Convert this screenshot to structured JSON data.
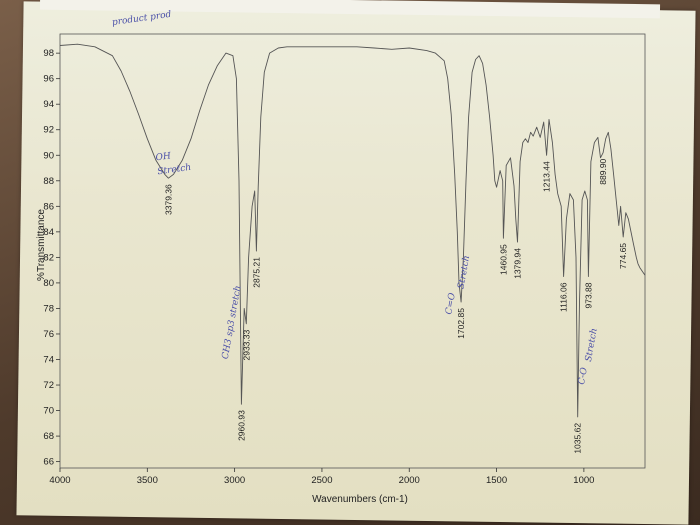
{
  "chart_data": {
    "type": "line",
    "xlabel": "Wavenumbers (cm-1)",
    "ylabel": "%Transmittance",
    "xlim": [
      4000,
      650
    ],
    "ylim": [
      65.5,
      99.5
    ],
    "x_ticks": [
      "4000",
      "3500",
      "3000",
      "2500",
      "2000",
      "1500",
      "1000"
    ],
    "x_tick_values": [
      4000,
      3500,
      3000,
      2500,
      2000,
      1500,
      1000
    ],
    "y_ticks": [
      "66",
      "68",
      "70",
      "72",
      "74",
      "76",
      "78",
      "80",
      "82",
      "84",
      "86",
      "88",
      "90",
      "92",
      "94",
      "96",
      "98"
    ],
    "y_tick_values": [
      66,
      68,
      70,
      72,
      74,
      76,
      78,
      80,
      82,
      84,
      86,
      88,
      90,
      92,
      94,
      96,
      98
    ],
    "series": [
      {
        "x": [
          4000,
          3900,
          3800,
          3700,
          3650,
          3600,
          3550,
          3500,
          3450,
          3400,
          3379.36,
          3350,
          3300,
          3250,
          3200,
          3150,
          3100,
          3050,
          3010,
          2990,
          2975,
          2960.93,
          2945,
          2933.33,
          2920,
          2900,
          2885,
          2875.21,
          2865,
          2850,
          2830,
          2800,
          2750,
          2700,
          2600,
          2500,
          2400,
          2300,
          2200,
          2100,
          2000,
          1900,
          1850,
          1800,
          1780,
          1760,
          1740,
          1725,
          1715,
          1702.85,
          1690,
          1675,
          1660,
          1640,
          1620,
          1600,
          1580,
          1560,
          1540,
          1520,
          1510,
          1500,
          1480,
          1465,
          1460.95,
          1445,
          1420,
          1400,
          1390,
          1379.94,
          1365,
          1350,
          1335,
          1320,
          1305,
          1290,
          1270,
          1250,
          1230,
          1213.44,
          1200,
          1180,
          1165,
          1150,
          1130,
          1116.06,
          1100,
          1080,
          1060,
          1045,
          1035.62,
          1025,
          1010,
          995,
          980,
          973.88,
          960,
          940,
          920,
          905,
          889.9,
          875,
          860,
          845,
          830,
          815,
          800,
          790,
          774.65,
          760,
          745,
          730,
          715,
          700,
          690,
          680,
          670,
          660,
          650
        ],
        "y": [
          98.6,
          98.7,
          98.5,
          97.8,
          96.6,
          95.0,
          93.2,
          91.3,
          89.6,
          88.5,
          88.2,
          88.5,
          89.6,
          91.3,
          93.5,
          95.5,
          97.0,
          98.0,
          97.8,
          96.0,
          88.0,
          70.5,
          78.0,
          76.8,
          82.0,
          86.0,
          87.2,
          82.5,
          87.5,
          93.0,
          96.5,
          98.0,
          98.4,
          98.5,
          98.5,
          98.5,
          98.5,
          98.5,
          98.4,
          98.3,
          98.4,
          98.2,
          98.0,
          97.4,
          96.0,
          93.2,
          88.5,
          84.0,
          80.0,
          78.5,
          82.0,
          88.0,
          93.0,
          96.5,
          97.5,
          97.8,
          97.2,
          95.5,
          93.0,
          90.0,
          88.0,
          87.5,
          88.8,
          88.0,
          83.5,
          89.2,
          89.8,
          87.6,
          85.0,
          83.2,
          89.5,
          91.0,
          91.3,
          91.0,
          91.8,
          91.5,
          92.2,
          91.4,
          92.6,
          90.0,
          92.8,
          91.0,
          88.5,
          87.0,
          86.0,
          80.5,
          85.0,
          87.0,
          86.5,
          82.0,
          69.5,
          78.5,
          86.5,
          87.2,
          86.5,
          80.5,
          89.5,
          91.0,
          91.4,
          89.8,
          90.2,
          91.3,
          91.8,
          90.5,
          88.5,
          86.5,
          84.5,
          86.0,
          83.6,
          85.5,
          85.0,
          84.0,
          83.0,
          82.0,
          81.5,
          81.2,
          81.0,
          80.8,
          80.6
        ]
      }
    ],
    "peak_labels": [
      {
        "text": "3379.36",
        "x": 3379.36
      },
      {
        "text": "2960.93",
        "x": 2960.93
      },
      {
        "text": "2933.33",
        "x": 2933.33
      },
      {
        "text": "2875.21",
        "x": 2875.21
      },
      {
        "text": "1702.85",
        "x": 1702.85
      },
      {
        "text": "1460.95",
        "x": 1460.95
      },
      {
        "text": "1379.94",
        "x": 1379.94
      },
      {
        "text": "1213.44",
        "x": 1213.44
      },
      {
        "text": "1116.06",
        "x": 1116.06
      },
      {
        "text": "1035.62",
        "x": 1035.62
      },
      {
        "text": "973.88",
        "x": 973.88
      },
      {
        "text": "889.90",
        "x": 889.9
      },
      {
        "text": "774.65",
        "x": 774.65
      }
    ],
    "handwritten_notes": [
      {
        "text": "product prod",
        "x": 3700,
        "y": 100.2
      },
      {
        "text": "OH",
        "x": 3450,
        "y": 89.6
      },
      {
        "text": "Stretch",
        "x": 3440,
        "y": 88.5
      },
      {
        "text": "CH3 sp3 stretch",
        "x": 3040,
        "y": 74.0
      },
      {
        "text": "C=O",
        "x": 1760,
        "y": 77.5
      },
      {
        "text": "Stretch",
        "x": 1690,
        "y": 79.5
      },
      {
        "text": "C-O",
        "x": 1000,
        "y": 72.0
      },
      {
        "text": "Stretch",
        "x": 960,
        "y": 73.8
      }
    ],
    "grid": false,
    "colors": {
      "line": "#555555",
      "frame": "#555555",
      "ink": "#4a4fa8"
    }
  }
}
